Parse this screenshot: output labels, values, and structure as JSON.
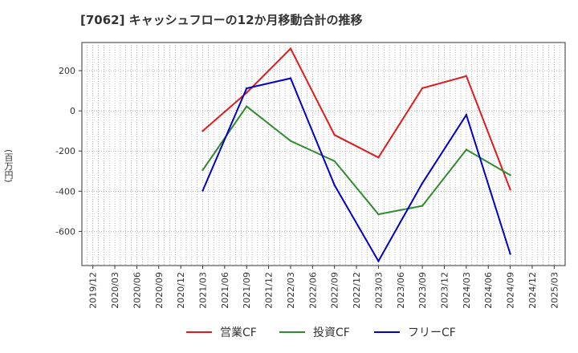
{
  "chart_data": {
    "type": "line",
    "title": "[7062]  キャッシュフローの12か月移動合計の推移",
    "xlabel": "",
    "ylabel": "(百万円)",
    "categories": [
      "2019/12",
      "2020/03",
      "2020/06",
      "2020/09",
      "2020/12",
      "2021/03",
      "2021/06",
      "2021/09",
      "2021/12",
      "2022/03",
      "2022/06",
      "2022/09",
      "2022/12",
      "2023/03",
      "2023/06",
      "2023/09",
      "2023/12",
      "2024/03",
      "2024/06",
      "2024/09",
      "2024/12",
      "2025/03"
    ],
    "ylim": [
      -770,
      340
    ],
    "yticks": [
      200,
      0,
      -200,
      -400,
      -600
    ],
    "ytick_labels": [
      "200",
      "0",
      "-200",
      "-400",
      "-600"
    ],
    "grid": true,
    "legend_position": "bottom-center",
    "series": [
      {
        "name": "営業CF",
        "color": "#e31a1c",
        "values": [
          null,
          null,
          null,
          null,
          null,
          -100,
          null,
          90,
          null,
          310,
          null,
          -120,
          null,
          -232,
          null,
          113,
          null,
          173,
          null,
          -392,
          null,
          null
        ]
      },
      {
        "name": "投資CF",
        "color": "#2e8b2e",
        "values": [
          null,
          null,
          null,
          null,
          null,
          -295,
          null,
          22,
          null,
          -150,
          null,
          -250,
          null,
          -515,
          null,
          -473,
          null,
          -193,
          null,
          -320,
          null,
          null
        ]
      },
      {
        "name": "フリーCF",
        "color": "#0000cc",
        "values": [
          null,
          null,
          null,
          null,
          null,
          -397,
          null,
          112,
          null,
          162,
          null,
          -370,
          null,
          -748,
          null,
          -360,
          null,
          -20,
          null,
          -712,
          null,
          null
        ]
      }
    ]
  }
}
